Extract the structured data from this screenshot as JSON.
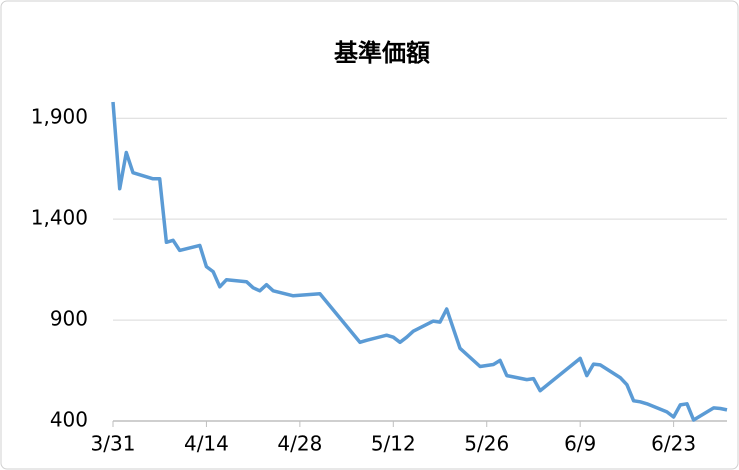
{
  "chart_data": {
    "type": "line",
    "title": "基準価額",
    "x": [
      "3/31",
      "4/1",
      "4/2",
      "4/3",
      "4/6",
      "4/7",
      "4/8",
      "4/9",
      "4/10",
      "4/13",
      "4/14",
      "4/15",
      "4/16",
      "4/17",
      "4/20",
      "4/21",
      "4/22",
      "4/23",
      "4/24",
      "4/27",
      "5/1",
      "5/7",
      "5/8",
      "5/11",
      "5/12",
      "5/13",
      "5/14",
      "5/15",
      "5/18",
      "5/19",
      "5/20",
      "5/22",
      "5/25",
      "5/26",
      "5/27",
      "5/28",
      "5/29",
      "6/1",
      "6/2",
      "6/3",
      "6/9",
      "6/10",
      "6/11",
      "6/12",
      "6/15",
      "6/16",
      "6/17",
      "6/18",
      "6/19",
      "6/22",
      "6/23",
      "6/24",
      "6/25",
      "6/26",
      "6/29",
      "6/30",
      "7/1"
    ],
    "series": [
      {
        "name": "基準価額",
        "color": "#5b9bd5",
        "values": [
          1980,
          1550,
          1730,
          1630,
          1600,
          1600,
          1285,
          1295,
          1245,
          1270,
          1165,
          1140,
          1065,
          1100,
          1090,
          1060,
          1045,
          1075,
          1045,
          1020,
          1030,
          790,
          800,
          825,
          815,
          790,
          815,
          845,
          895,
          890,
          955,
          760,
          670,
          675,
          680,
          700,
          625,
          605,
          610,
          550,
          710,
          625,
          682,
          678,
          615,
          580,
          500,
          495,
          485,
          445,
          420,
          480,
          485,
          405,
          465,
          462,
          455
        ]
      }
    ],
    "xticks": [
      "3/31",
      "4/14",
      "4/28",
      "5/12",
      "5/26",
      "6/9",
      "6/23"
    ],
    "ylim": [
      400,
      2000
    ],
    "yticks": [
      400,
      900,
      {
        "value": 1400,
        "label": "1,400"
      },
      {
        "value": 1900,
        "label": "1,900"
      }
    ],
    "grid": true
  }
}
